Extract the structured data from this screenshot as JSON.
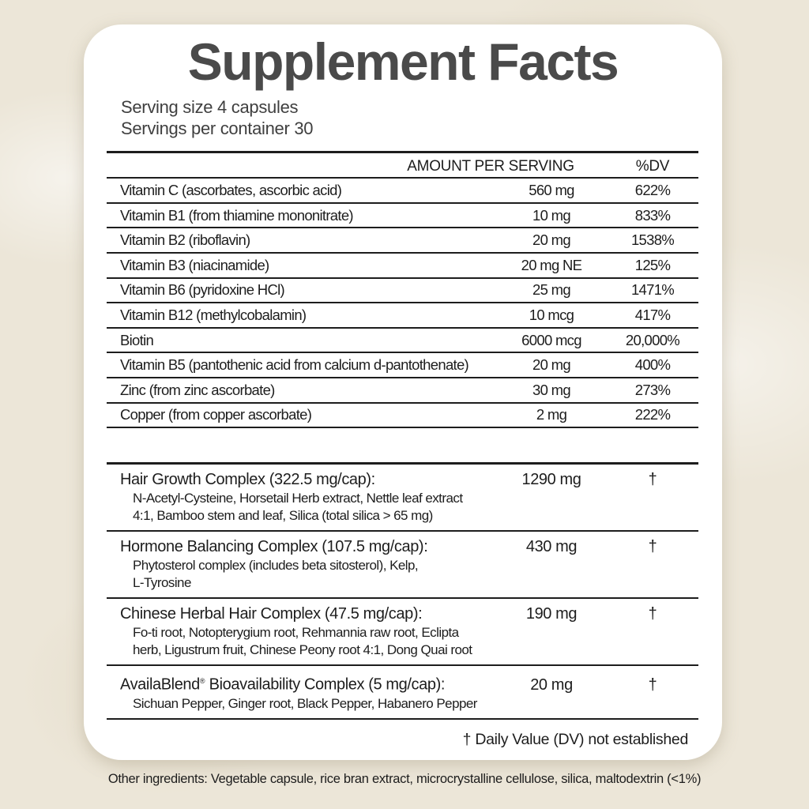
{
  "colors": {
    "page_background": "#ece6d8",
    "card_background": "#ffffff",
    "title_text": "#4a4a4a",
    "serving_text": "#3f3f3f",
    "body_text": "#1d1d1d"
  },
  "label": {
    "title": "Supplement Facts",
    "serving_size": "Serving size 4 capsules",
    "servings_per_container": "Servings per container 30",
    "table_header": {
      "amount": "AMOUNT PER SERVING",
      "dv": "%DV"
    },
    "nutrients": [
      {
        "name": "Vitamin C (ascorbates, ascorbic acid)",
        "amount": "560 mg",
        "dv": "622%"
      },
      {
        "name": "Vitamin B1 (from thiamine mononitrate)",
        "amount": "10 mg",
        "dv": "833%"
      },
      {
        "name": "Vitamin B2 (riboflavin)",
        "amount": "20 mg",
        "dv": "1538%"
      },
      {
        "name": "Vitamin B3 (niacinamide)",
        "amount": "20 mg NE",
        "dv": "125%"
      },
      {
        "name": "Vitamin B6 (pyridoxine HCl)",
        "amount": "25 mg",
        "dv": "1471%"
      },
      {
        "name": "Vitamin B12 (methylcobalamin)",
        "amount": "10 mcg",
        "dv": "417%"
      },
      {
        "name": "Biotin",
        "amount": "6000 mcg",
        "dv": "20,000%"
      },
      {
        "name": "Vitamin B5 (pantothenic acid from calcium d-pantothenate)",
        "amount": "20 mg",
        "dv": "400%"
      },
      {
        "name": "Zinc (from zinc ascorbate)",
        "amount": "30 mg",
        "dv": "273%"
      },
      {
        "name": "Copper (from copper ascorbate)",
        "amount": "2 mg",
        "dv": "222%"
      }
    ],
    "complexes": [
      {
        "name": "Hair Growth Complex (322.5 mg/cap):",
        "amount": "1290 mg",
        "dv": "†",
        "ingredient_lines": [
          "N-Acetyl-Cysteine, Horsetail Herb extract, Nettle leaf extract",
          "4:1, Bamboo stem and leaf, Silica (total silica > 65 mg)"
        ]
      },
      {
        "name": "Hormone Balancing Complex (107.5 mg/cap):",
        "amount": "430 mg",
        "dv": "†",
        "ingredient_lines": [
          "Phytosterol complex (includes beta sitosterol), Kelp,",
          "L-Tyrosine"
        ]
      },
      {
        "name": "Chinese Herbal Hair Complex (47.5 mg/cap):",
        "amount": "190 mg",
        "dv": "†",
        "ingredient_lines": [
          "Fo-ti root, Notopterygium root, Rehmannia raw root, Eclipta",
          "herb, Ligustrum fruit, Chinese Peony root 4:1, Dong Quai root"
        ]
      },
      {
        "name": "AvailaBlend® Bioavailability Complex (5 mg/cap):",
        "amount": "20 mg",
        "dv": "†",
        "ingredient_lines": [
          "Sichuan Pepper, Ginger root, Black Pepper, Habanero Pepper"
        ]
      }
    ],
    "footnote": "† Daily Value (DV) not established",
    "other_ingredients": "Other ingredients:  Vegetable capsule, rice bran extract, microcrystalline cellulose, silica, maltodextrin (<1%)"
  }
}
